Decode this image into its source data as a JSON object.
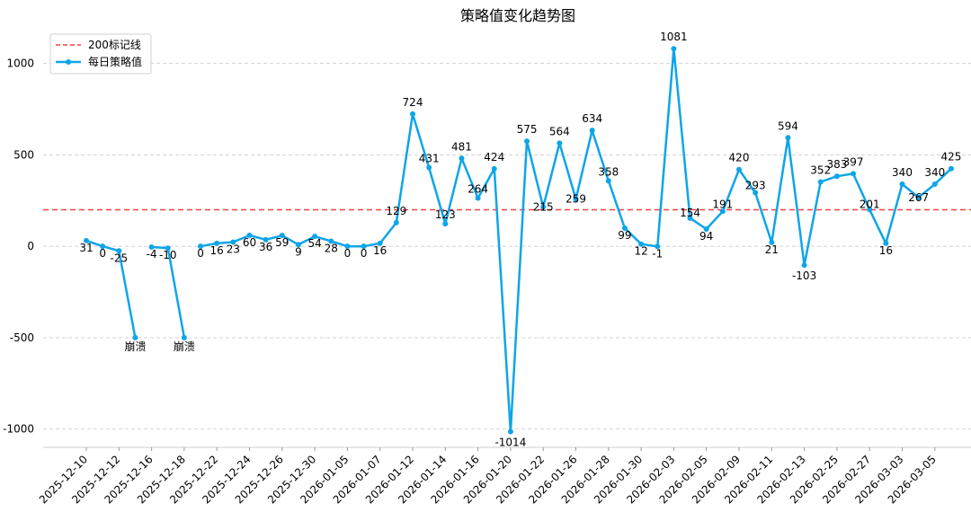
{
  "chart_data": {
    "type": "line",
    "title": "策略值变化趋势图",
    "xlabel": "",
    "ylabel": "",
    "ylim": [
      -1100,
      1200
    ],
    "yticks": [
      -1000,
      -500,
      0,
      500,
      1000
    ],
    "grid": "y-dashed",
    "legend_position": "top-left",
    "x_tick_labels": [
      "2025-12-10",
      "2025-12-12",
      "2025-12-16",
      "2025-12-18",
      "2025-12-22",
      "2025-12-24",
      "2025-12-26",
      "2025-12-30",
      "2026-01-05",
      "2026-01-07",
      "2026-01-12",
      "2026-01-14",
      "2026-01-16",
      "2026-01-20",
      "2026-01-22",
      "2026-01-26",
      "2026-01-28",
      "2026-01-30",
      "2026-02-03",
      "2026-02-05",
      "2026-02-09",
      "2026-02-11",
      "2026-02-13",
      "2026-02-25",
      "2026-02-27",
      "2026-03-03",
      "2026-03-05"
    ],
    "series": [
      {
        "name": "每日策略值",
        "color": "#0ea5e9",
        "segments": [
          [
            {
              "x": "2025-12-10",
              "y": 31,
              "label": "31"
            },
            {
              "x": "2025-12-11",
              "y": 0,
              "label": "0"
            },
            {
              "x": "2025-12-12",
              "y": -25,
              "label": "-25"
            },
            {
              "x": "2025-12-15",
              "y": -500,
              "label": "崩溃"
            }
          ],
          [
            {
              "x": "2025-12-16",
              "y": -4,
              "label": "-4"
            },
            {
              "x": "2025-12-17",
              "y": -10,
              "label": "-10"
            },
            {
              "x": "2025-12-18",
              "y": -500,
              "label": "崩溃"
            }
          ],
          [
            {
              "x": "2025-12-19",
              "y": 0,
              "label": "0"
            },
            {
              "x": "2025-12-22",
              "y": 16,
              "label": "16"
            },
            {
              "x": "2025-12-23",
              "y": 23,
              "label": "23"
            },
            {
              "x": "2025-12-24",
              "y": 60,
              "label": "60"
            },
            {
              "x": "2025-12-25",
              "y": 36,
              "label": "36"
            },
            {
              "x": "2025-12-26",
              "y": 59,
              "label": "59"
            },
            {
              "x": "2025-12-29",
              "y": 9,
              "label": "9"
            },
            {
              "x": "2025-12-30",
              "y": 54,
              "label": "54"
            },
            {
              "x": "2025-12-31",
              "y": 28,
              "label": "28"
            },
            {
              "x": "2026-01-05",
              "y": 0,
              "label": "0"
            },
            {
              "x": "2026-01-06",
              "y": 0,
              "label": "0"
            },
            {
              "x": "2026-01-07",
              "y": 16,
              "label": "16"
            },
            {
              "x": "2026-01-08",
              "y": 129,
              "label": "129"
            },
            {
              "x": "2026-01-12",
              "y": 724,
              "label": "724"
            },
            {
              "x": "2026-01-13",
              "y": 431,
              "label": "431"
            },
            {
              "x": "2026-01-14",
              "y": 123,
              "label": "123"
            },
            {
              "x": "2026-01-15",
              "y": 481,
              "label": "481"
            },
            {
              "x": "2026-01-16",
              "y": 264,
              "label": "264"
            },
            {
              "x": "2026-01-19",
              "y": 424,
              "label": "424"
            },
            {
              "x": "2026-01-20",
              "y": -1014,
              "label": "-1014"
            },
            {
              "x": "2026-01-21",
              "y": 575,
              "label": "575"
            },
            {
              "x": "2026-01-22",
              "y": 215,
              "label": "215"
            },
            {
              "x": "2026-01-23",
              "y": 564,
              "label": "564"
            },
            {
              "x": "2026-01-26",
              "y": 259,
              "label": "259"
            },
            {
              "x": "2026-01-27",
              "y": 634,
              "label": "634"
            },
            {
              "x": "2026-01-28",
              "y": 358,
              "label": "358"
            },
            {
              "x": "2026-01-29",
              "y": 99,
              "label": "99"
            },
            {
              "x": "2026-01-30",
              "y": 12,
              "label": "12"
            },
            {
              "x": "2026-02-02",
              "y": -1,
              "label": "-1"
            },
            {
              "x": "2026-02-03",
              "y": 1081,
              "label": "1081"
            },
            {
              "x": "2026-02-04",
              "y": 154,
              "label": "154"
            },
            {
              "x": "2026-02-05",
              "y": 94,
              "label": "94"
            },
            {
              "x": "2026-02-06",
              "y": 191,
              "label": "191"
            },
            {
              "x": "2026-02-09",
              "y": 420,
              "label": "420"
            },
            {
              "x": "2026-02-10",
              "y": 293,
              "label": "293"
            },
            {
              "x": "2026-02-11",
              "y": 21,
              "label": "21"
            },
            {
              "x": "2026-02-12",
              "y": 594,
              "label": "594"
            },
            {
              "x": "2026-02-13",
              "y": -103,
              "label": "-103"
            },
            {
              "x": "2026-02-24",
              "y": 352,
              "label": "352"
            },
            {
              "x": "2026-02-25",
              "y": 383,
              "label": "383"
            },
            {
              "x": "2026-02-26",
              "y": 397,
              "label": "397"
            },
            {
              "x": "2026-02-27",
              "y": 201,
              "label": "201"
            },
            {
              "x": "2026-03-02",
              "y": 16,
              "label": "16"
            },
            {
              "x": "2026-03-03",
              "y": 340,
              "label": "340"
            },
            {
              "x": "2026-03-04",
              "y": 267,
              "label": "267"
            },
            {
              "x": "2026-03-05",
              "y": 340,
              "label": "340"
            },
            {
              "x": "2026-03-06",
              "y": 425,
              "label": "425"
            }
          ]
        ]
      },
      {
        "name": "200标记线",
        "type": "hline",
        "value": 200,
        "color": "#ef4444"
      }
    ]
  }
}
